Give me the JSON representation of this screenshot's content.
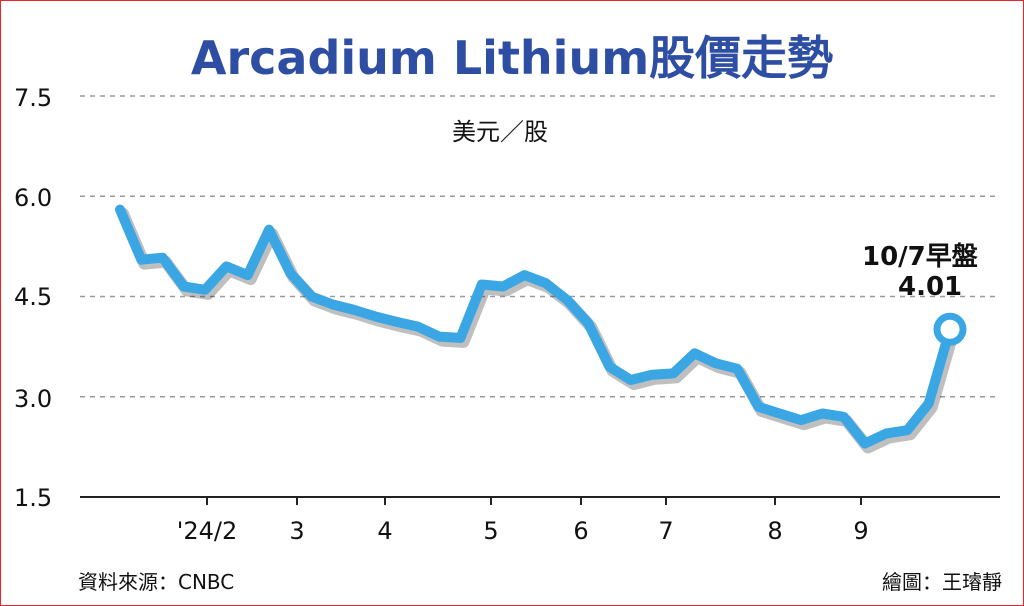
{
  "chart_data": {
    "type": "line",
    "title": "Arcadium Lithium股價走勢",
    "unit_label": "美元／股",
    "ylim": [
      1.5,
      7.5
    ],
    "y_ticks": [
      "7.5",
      "6.0",
      "4.5",
      "3.0",
      "1.5"
    ],
    "x_tick_labels": [
      "'24/2",
      "3",
      "4",
      "5",
      "6",
      "7",
      "8",
      "9"
    ],
    "grid": "dashed horizontal",
    "series": [
      {
        "color": "#3aa6e4",
        "values": [
          5.8,
          5.05,
          5.08,
          4.65,
          4.6,
          4.95,
          4.82,
          5.5,
          4.85,
          4.5,
          4.38,
          4.3,
          4.2,
          4.12,
          4.05,
          3.9,
          3.88,
          4.68,
          4.65,
          4.82,
          4.7,
          4.45,
          4.1,
          3.45,
          3.25,
          3.33,
          3.35,
          3.65,
          3.5,
          3.42,
          2.85,
          2.75,
          2.65,
          2.75,
          2.7,
          2.3,
          2.45,
          2.5,
          2.9,
          4.01
        ]
      }
    ],
    "annotation": {
      "date": "10/7早盤",
      "value": "4.01"
    }
  },
  "footer": {
    "source": "資料來源：CNBC",
    "credit": "繪圖：王璿靜"
  }
}
